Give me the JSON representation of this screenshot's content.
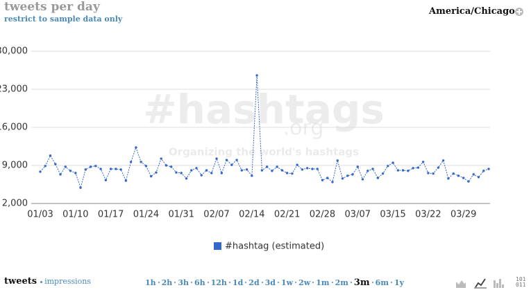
{
  "chart_data": {
    "type": "line",
    "title": "tweets per day",
    "subtitle": "restrict to sample data only",
    "categories": [
      "01/03",
      null,
      null,
      null,
      null,
      null,
      null,
      "01/10",
      null,
      null,
      null,
      null,
      null,
      null,
      "01/17",
      null,
      null,
      null,
      null,
      null,
      null,
      "01/24",
      null,
      null,
      null,
      null,
      null,
      null,
      "01/31",
      null,
      null,
      null,
      null,
      null,
      null,
      "02/07",
      null,
      null,
      null,
      null,
      null,
      null,
      "02/14",
      null,
      null,
      null,
      null,
      null,
      null,
      "02/21",
      null,
      null,
      null,
      null,
      null,
      null,
      "02/28",
      null,
      null,
      null,
      null,
      null,
      null,
      "03/07",
      null,
      null,
      null,
      null,
      null,
      null,
      "03/15",
      null,
      null,
      null,
      null,
      null,
      null,
      "03/22",
      null,
      null,
      null,
      null,
      null,
      null,
      "03/29",
      null,
      null,
      null,
      null,
      null
    ],
    "series": [
      {
        "name": "#hashtag (estimated)",
        "color": "#3366cc",
        "values": [
          7850,
          8900,
          10800,
          9250,
          7350,
          8750,
          8000,
          7600,
          4900,
          8250,
          8750,
          8900,
          8350,
          6300,
          8350,
          8350,
          8250,
          6200,
          9650,
          12300,
          9650,
          8900,
          7000,
          7700,
          10250,
          9000,
          8750,
          7700,
          7600,
          6600,
          8100,
          8500,
          7200,
          8100,
          7600,
          10250,
          7600,
          10000,
          9100,
          10000,
          8100,
          8250,
          7100,
          25550,
          8100,
          8750,
          8000,
          8750,
          8100,
          7600,
          7500,
          9100,
          8250,
          8500,
          8350,
          8350,
          6300,
          6700,
          5950,
          9900,
          6600,
          7100,
          7350,
          8750,
          6450,
          8000,
          8350,
          6700,
          7500,
          8900,
          9500,
          8100,
          8100,
          8000,
          8500,
          8600,
          9650,
          7600,
          7500,
          8600,
          9900,
          6600,
          7500,
          7100,
          6700,
          6050,
          7350,
          6850,
          8000,
          8350
        ]
      }
    ],
    "ylim": [
      2000,
      30000
    ],
    "yticks": [
      {
        "value": 2000,
        "label": "2,000"
      },
      {
        "value": 9000,
        "label": "9,000"
      },
      {
        "value": 16000,
        "label": "16,000"
      },
      {
        "value": 23000,
        "label": "23,000"
      },
      {
        "value": 30000,
        "label": "30,000"
      }
    ],
    "grid": true
  },
  "header": {
    "timezone": "America/Chicago"
  },
  "watermark": {
    "logo": "#hashtags",
    "domain": ".org",
    "tagline": "Organizing the world's hashtags"
  },
  "footer": {
    "metric": "tweets",
    "alt_metric": "impressions",
    "ranges": [
      "1h",
      "2h",
      "3h",
      "6h",
      "12h",
      "1d",
      "2d",
      "3d",
      "1w",
      "2w",
      "1m",
      "2m",
      "3m",
      "6m",
      "1y"
    ],
    "active_range_index": 12,
    "binary_icon": [
      "101",
      "011"
    ]
  }
}
